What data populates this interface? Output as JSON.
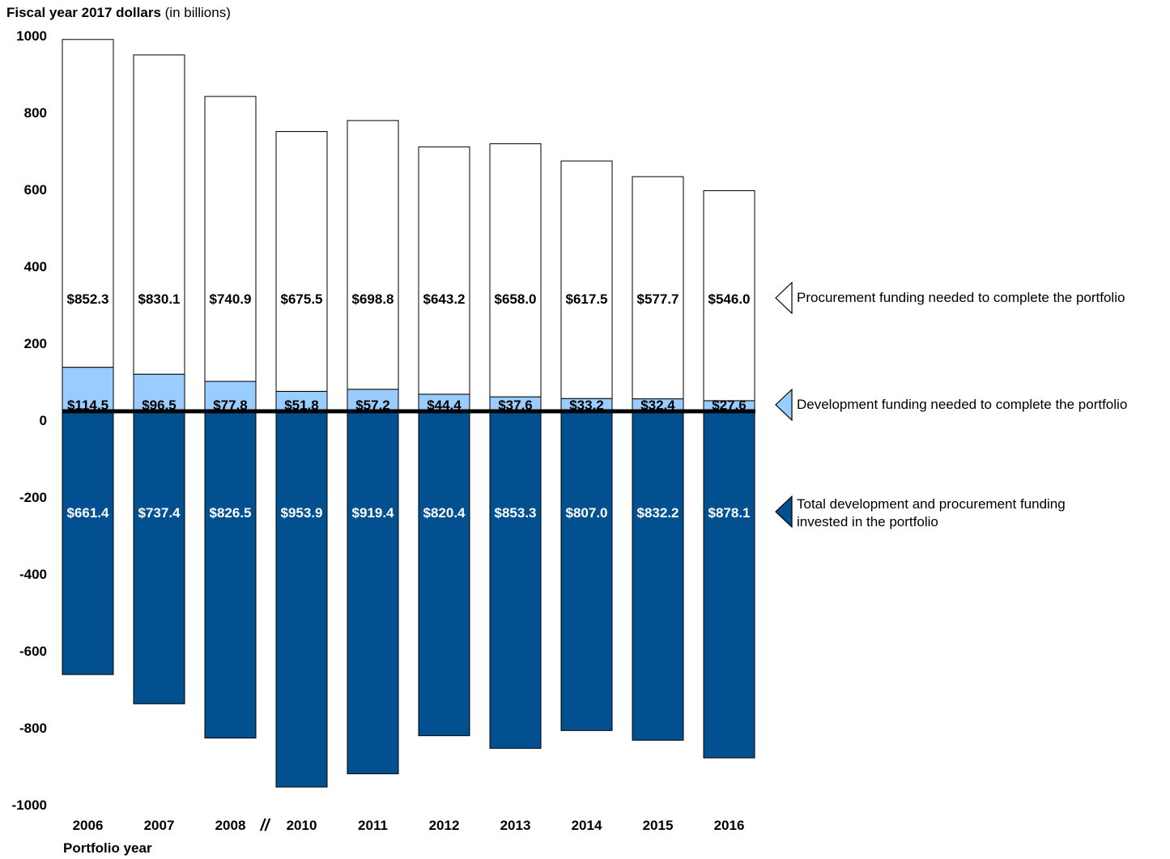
{
  "axis": {
    "y_title_bold": "Fiscal year 2017 dollars",
    "y_title_rest": " (in billions)",
    "x_title": "Portfolio year",
    "break_mark": "//"
  },
  "colors": {
    "procurement": "#ffffff",
    "development": "#99ccff",
    "invested": "#02508f",
    "outline": "#000000"
  },
  "legend": [
    {
      "key": "procurement",
      "label": "Procurement funding needed to complete the portfolio",
      "icon": "triangle-left-white-icon"
    },
    {
      "key": "development",
      "label": "Development funding needed to complete the portfolio",
      "icon": "triangle-left-lightblue-icon"
    },
    {
      "key": "invested",
      "label": "Total development and procurement funding invested in the portfolio",
      "icon": "triangle-left-darkblue-icon"
    }
  ],
  "chart_data": {
    "type": "bar",
    "stacked": true,
    "categories": [
      "2006",
      "2007",
      "2008",
      "2010",
      "2011",
      "2012",
      "2013",
      "2014",
      "2015",
      "2016"
    ],
    "ylim": [
      -1000,
      1000
    ],
    "yticks": [
      1000,
      800,
      600,
      400,
      200,
      0,
      -200,
      -400,
      -600,
      -800,
      -1000
    ],
    "series": [
      {
        "key": "development",
        "name": "Development funding needed to complete the portfolio",
        "values": [
          114.5,
          96.5,
          77.8,
          51.8,
          57.2,
          44.4,
          37.6,
          33.2,
          32.4,
          27.6
        ],
        "labels": [
          "$114.5",
          "$96.5",
          "$77.8",
          "$51.8",
          "$57.2",
          "$44.4",
          "$37.6",
          "$33.2",
          "$32.4",
          "$27.6"
        ]
      },
      {
        "key": "procurement",
        "name": "Procurement funding needed to complete the portfolio",
        "values": [
          852.3,
          830.1,
          740.9,
          675.5,
          698.8,
          643.2,
          658.0,
          617.5,
          577.7,
          546.0
        ],
        "labels": [
          "$852.3",
          "$830.1",
          "$740.9",
          "$675.5",
          "$698.8",
          "$643.2",
          "$658.0",
          "$617.5",
          "$577.7",
          "$546.0"
        ]
      },
      {
        "key": "invested",
        "name": "Total development and procurement funding invested in the portfolio",
        "values": [
          -661.4,
          -737.4,
          -826.5,
          -953.9,
          -919.4,
          -820.4,
          -853.3,
          -807.0,
          -832.2,
          -878.1
        ],
        "labels": [
          "$661.4",
          "$737.4",
          "$826.5",
          "$953.9",
          "$919.4",
          "$820.4",
          "$853.3",
          "$807.0",
          "$832.2",
          "$878.1"
        ]
      }
    ]
  }
}
